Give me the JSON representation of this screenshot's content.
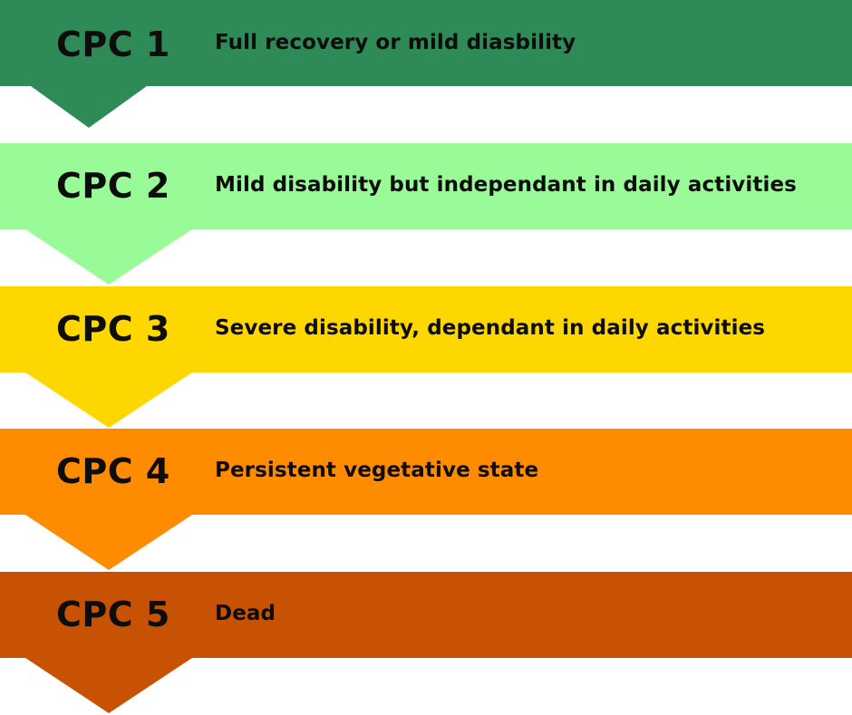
{
  "levels": [
    {
      "code": "CPC 1",
      "description": "Full recovery or mild diasbility",
      "color": "#2e8b57"
    },
    {
      "code": "CPC 2",
      "description": "Mild disability but independant in daily activities",
      "color": "#98fb98"
    },
    {
      "code": "CPC 3",
      "description": "Severe disability, dependant in daily activities",
      "color": "#ffd700"
    },
    {
      "code": "CPC 4",
      "description": "Persistent vegetative state",
      "color": "#ff8c00"
    },
    {
      "code": "CPC 5",
      "description": "Dead",
      "color": "#c75204"
    }
  ]
}
